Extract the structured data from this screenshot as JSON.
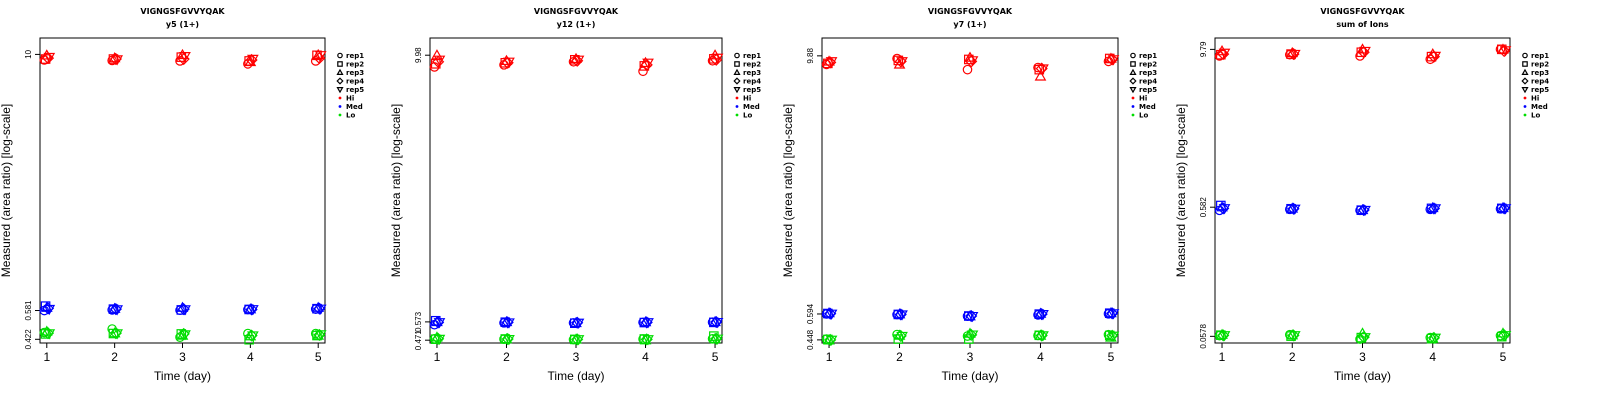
{
  "chart_data": [
    {
      "type": "scatter",
      "title": "VIGNGSFGVVYQAK",
      "subtitle": "y5 (1+)",
      "xlabel": "Time (day)",
      "ylabel": "Measured (area ratio) [log-scale]",
      "x_ticks": [
        1,
        2,
        3,
        4,
        5
      ],
      "y_ticks": [
        10,
        0.581,
        0.422
      ],
      "y_tick_labels": [
        "10",
        "0.581",
        "0.422"
      ],
      "y_scale": "log",
      "xlim": [
        0.9,
        5.1
      ],
      "ylim": [
        0.405,
        12.0
      ],
      "legend_position": "right",
      "series": [
        {
          "name": "Hi",
          "color": "#ff0000",
          "replicates": {
            "rep1": [
              9.4,
              9.35,
              9.3,
              9.0,
              9.3
            ],
            "rep2": [
              9.5,
              9.5,
              9.7,
              9.3,
              9.9
            ],
            "rep3": [
              9.9,
              9.6,
              9.95,
              9.2,
              9.95
            ],
            "rep4": [
              9.6,
              9.5,
              9.5,
              9.4,
              9.6
            ],
            "rep5": [
              9.7,
              9.45,
              9.8,
              9.5,
              9.9
            ]
          }
        },
        {
          "name": "Med",
          "color": "#0000ff",
          "replicates": {
            "rep1": [
              0.581,
              0.585,
              0.583,
              0.587,
              0.59
            ],
            "rep2": [
              0.61,
              0.59,
              0.585,
              0.588,
              0.593
            ],
            "rep3": [
              0.6,
              0.593,
              0.6,
              0.59,
              0.6
            ],
            "rep4": [
              0.595,
              0.59,
              0.59,
              0.588,
              0.593
            ],
            "rep5": [
              0.59,
              0.588,
              0.588,
              0.589,
              0.592
            ]
          }
        },
        {
          "name": "Lo",
          "color": "#00dd00",
          "replicates": {
            "rep1": [
              0.455,
              0.473,
              0.432,
              0.45,
              0.45
            ],
            "rep2": [
              0.448,
              0.45,
              0.448,
              0.42,
              0.44
            ],
            "rep3": [
              0.46,
              0.452,
              0.44,
              0.437,
              0.44
            ],
            "rep4": [
              0.452,
              0.452,
              0.448,
              0.44,
              0.443
            ],
            "rep5": [
              0.45,
              0.45,
              0.445,
              0.44,
              0.445
            ]
          }
        }
      ]
    },
    {
      "type": "scatter",
      "title": "VIGNGSFGVVYQAK",
      "subtitle": "y12 (1+)",
      "xlabel": "Time (day)",
      "ylabel": "Measured (area ratio) [log-scale]",
      "x_ticks": [
        1,
        2,
        3,
        4,
        5
      ],
      "y_ticks": [
        9.98,
        0.573,
        0.471
      ],
      "y_tick_labels": [
        "9.98",
        "0.573",
        "0.471"
      ],
      "y_scale": "log",
      "xlim": [
        0.9,
        5.1
      ],
      "ylim": [
        0.457,
        12.0
      ],
      "legend_position": "right",
      "series": [
        {
          "name": "Hi",
          "color": "#ff0000",
          "replicates": {
            "rep1": [
              8.8,
              9.0,
              9.3,
              8.4,
              9.4
            ],
            "rep2": [
              9.1,
              9.2,
              9.5,
              8.9,
              9.6
            ],
            "rep3": [
              9.98,
              9.4,
              9.6,
              9.2,
              9.98
            ],
            "rep4": [
              9.3,
              9.2,
              9.4,
              9.0,
              9.5
            ],
            "rep5": [
              9.5,
              9.3,
              9.5,
              9.2,
              9.7
            ]
          }
        },
        {
          "name": "Med",
          "color": "#0000ff",
          "replicates": {
            "rep1": [
              0.556,
              0.567,
              0.567,
              0.57,
              0.571
            ],
            "rep2": [
              0.58,
              0.571,
              0.565,
              0.569,
              0.57
            ],
            "rep3": [
              0.573,
              0.573,
              0.567,
              0.572,
              0.573
            ],
            "rep4": [
              0.57,
              0.57,
              0.568,
              0.57,
              0.572
            ],
            "rep5": [
              0.57,
              0.569,
              0.567,
              0.57,
              0.571
            ]
          }
        },
        {
          "name": "Lo",
          "color": "#00dd00",
          "replicates": {
            "rep1": [
              0.478,
              0.476,
              0.474,
              0.477,
              0.478
            ],
            "rep2": [
              0.476,
              0.477,
              0.475,
              0.477,
              0.492
            ],
            "rep3": [
              0.486,
              0.477,
              0.475,
              0.471,
              0.478
            ],
            "rep4": [
              0.478,
              0.477,
              0.475,
              0.475,
              0.478
            ],
            "rep5": [
              0.477,
              0.476,
              0.475,
              0.475,
              0.478
            ]
          }
        }
      ]
    },
    {
      "type": "scatter",
      "title": "VIGNGSFGVVYQAK",
      "subtitle": "y7 (1+)",
      "xlabel": "Time (day)",
      "ylabel": "Measured (area ratio) [log-scale]",
      "x_ticks": [
        1,
        2,
        3,
        4,
        5
      ],
      "y_ticks": [
        9.88,
        0.594,
        0.448
      ],
      "y_tick_labels": [
        "9.88",
        "0.594",
        "0.448"
      ],
      "y_scale": "log",
      "xlim": [
        0.9,
        5.1
      ],
      "ylim": [
        0.433,
        12.0
      ],
      "legend_position": "right",
      "series": [
        {
          "name": "Hi",
          "color": "#ff0000",
          "replicates": {
            "rep1": [
              9.0,
              9.6,
              8.5,
              8.7,
              9.3
            ],
            "rep2": [
              9.1,
              9.4,
              9.5,
              8.5,
              9.6
            ],
            "rep3": [
              9.3,
              9.0,
              9.7,
              7.9,
              9.6
            ],
            "rep4": [
              9.2,
              9.3,
              9.3,
              8.6,
              9.5
            ],
            "rep5": [
              9.3,
              9.3,
              9.4,
              8.6,
              9.5
            ]
          }
        },
        {
          "name": "Med",
          "color": "#0000ff",
          "replicates": {
            "rep1": [
              0.594,
              0.59,
              0.58,
              0.588,
              0.595
            ],
            "rep2": [
              0.597,
              0.591,
              0.581,
              0.593,
              0.599
            ],
            "rep3": [
              0.6,
              0.593,
              0.58,
              0.597,
              0.6
            ],
            "rep4": [
              0.596,
              0.591,
              0.581,
              0.593,
              0.598
            ],
            "rep5": [
              0.595,
              0.59,
              0.58,
              0.592,
              0.597
            ]
          }
        },
        {
          "name": "Lo",
          "color": "#00dd00",
          "replicates": {
            "rep1": [
              0.452,
              0.475,
              0.467,
              0.47,
              0.474
            ],
            "rep2": [
              0.45,
              0.452,
              0.452,
              0.471,
              0.47
            ],
            "rep3": [
              0.446,
              0.47,
              0.48,
              0.47,
              0.46
            ],
            "rep4": [
              0.448,
              0.468,
              0.473,
              0.47,
              0.469
            ],
            "rep5": [
              0.448,
              0.467,
              0.474,
              0.47,
              0.468
            ]
          }
        }
      ]
    },
    {
      "type": "scatter",
      "title": "VIGNGSFGVVYQAK",
      "subtitle": "sum of Ions",
      "xlabel": "Time (day)",
      "ylabel": "Measured (area ratio) [log-scale]",
      "x_ticks": [
        1,
        2,
        3,
        4,
        5
      ],
      "y_ticks": [
        9.79,
        0.582,
        0.0578
      ],
      "y_tick_labels": [
        "9.79",
        "0.582",
        "0.0578"
      ],
      "y_scale": "log",
      "xlim": [
        0.9,
        5.1
      ],
      "ylim": [
        0.0513,
        12.0
      ],
      "legend_position": "right",
      "series": [
        {
          "name": "Hi",
          "color": "#ff0000",
          "replicates": {
            "rep1": [
              8.7,
              8.9,
              8.7,
              8.2,
              9.8
            ],
            "rep2": [
              8.9,
              9.0,
              9.3,
              8.6,
              9.8
            ],
            "rep3": [
              9.5,
              9.2,
              9.8,
              9.0,
              9.79
            ],
            "rep4": [
              9.0,
              9.0,
              9.3,
              8.6,
              9.5
            ],
            "rep5": [
              9.2,
              9.0,
              9.5,
              8.7,
              9.6
            ]
          }
        },
        {
          "name": "Med",
          "color": "#0000ff",
          "replicates": {
            "rep1": [
              0.55,
              0.56,
              0.55,
              0.56,
              0.565
            ],
            "rep2": [
              0.6,
              0.566,
              0.552,
              0.57,
              0.57
            ],
            "rep3": [
              0.582,
              0.57,
              0.555,
              0.575,
              0.575
            ],
            "rep4": [
              0.57,
              0.566,
              0.553,
              0.569,
              0.57
            ],
            "rep5": [
              0.57,
              0.565,
              0.553,
              0.569,
              0.569
            ]
          }
        },
        {
          "name": "Lo",
          "color": "#00dd00",
          "replicates": {
            "rep1": [
              0.0585,
              0.0595,
              0.055,
              0.0565,
              0.0585
            ],
            "rep2": [
              0.059,
              0.058,
              0.0565,
              0.0555,
              0.0575
            ],
            "rep3": [
              0.0595,
              0.059,
              0.061,
              0.0555,
              0.061
            ],
            "rep4": [
              0.0588,
              0.0588,
              0.057,
              0.0562,
              0.059
            ],
            "rep5": [
              0.0588,
              0.0588,
              0.0568,
              0.0562,
              0.0588
            ]
          }
        }
      ]
    }
  ],
  "legend": {
    "replicates": [
      {
        "label": "rep1",
        "symbol": "circle"
      },
      {
        "label": "rep2",
        "symbol": "square"
      },
      {
        "label": "rep3",
        "symbol": "triangle-up"
      },
      {
        "label": "rep4",
        "symbol": "diamond"
      },
      {
        "label": "rep5",
        "symbol": "triangle-down"
      }
    ],
    "levels": [
      {
        "label": "Hi",
        "color": "#ff0000"
      },
      {
        "label": "Med",
        "color": "#0000ff"
      },
      {
        "label": "Lo",
        "color": "#00dd00"
      }
    ]
  }
}
